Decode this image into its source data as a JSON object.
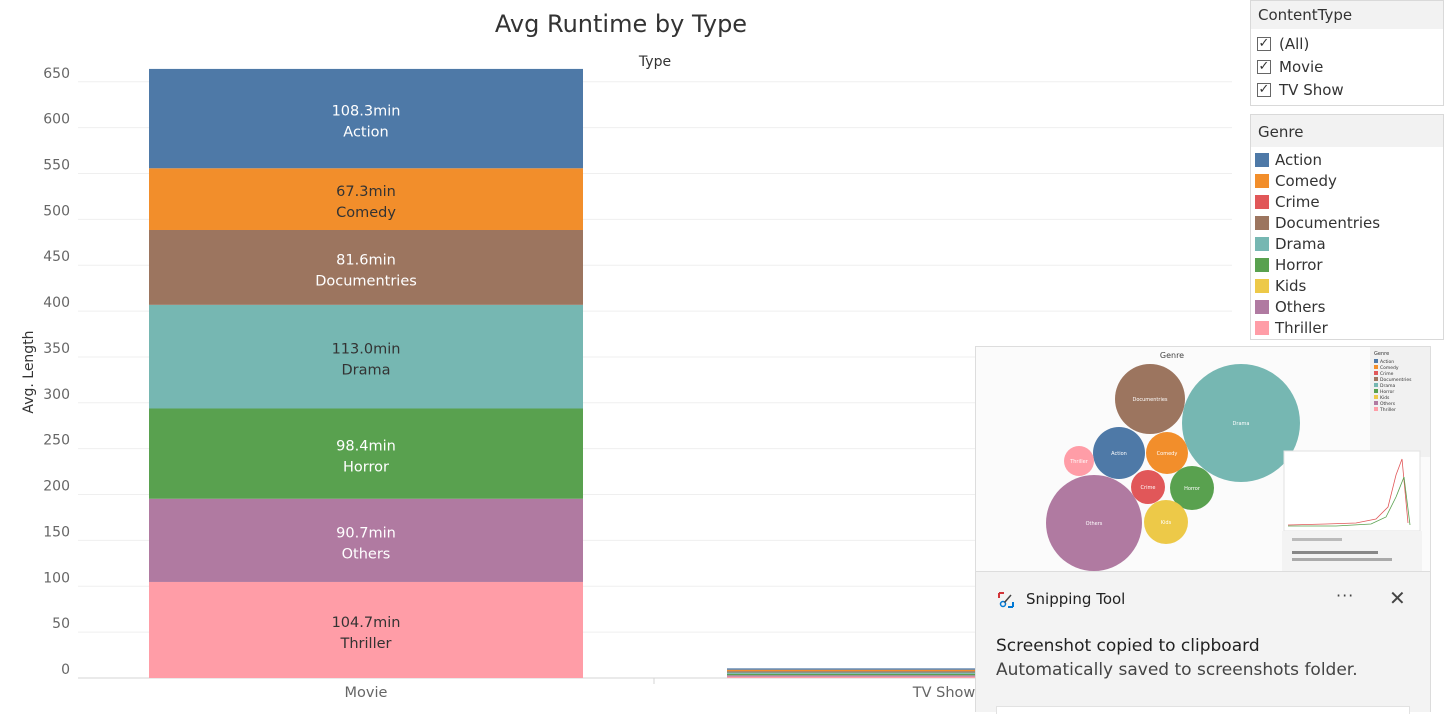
{
  "chart_data": {
    "type": "bar",
    "stacked": true,
    "title": "Avg Runtime by Type",
    "header": "Type",
    "ylabel": "Avg. Length",
    "ylim": [
      0,
      665
    ],
    "yticks": [
      0,
      50,
      100,
      150,
      200,
      250,
      300,
      350,
      400,
      450,
      500,
      550,
      600,
      650
    ],
    "grid": true,
    "categories": [
      "Movie",
      "TV Show"
    ],
    "series": [
      {
        "name": "Thriller",
        "color": "#ff9da7",
        "values": [
          104.7,
          1.5
        ],
        "label": "104.7min",
        "text_color": "#333333"
      },
      {
        "name": "Others",
        "color": "#b07aa1",
        "values": [
          90.7,
          1.5
        ],
        "label": "90.7min",
        "text_color": "#ffffff"
      },
      {
        "name": "Horror",
        "color": "#59a14f",
        "values": [
          98.4,
          1.5
        ],
        "label": "98.4min",
        "text_color": "#ffffff"
      },
      {
        "name": "Drama",
        "color": "#76b7b2",
        "values": [
          113.0,
          1.5
        ],
        "label": "113.0min",
        "text_color": "#333333"
      },
      {
        "name": "Documentries",
        "color": "#9c755f",
        "values": [
          81.6,
          1.5
        ],
        "label": "81.6min",
        "text_color": "#ffffff"
      },
      {
        "name": "Comedy",
        "color": "#f28e2b",
        "values": [
          67.3,
          1.5
        ],
        "label": "67.3min",
        "text_color": "#333333"
      },
      {
        "name": "Action",
        "color": "#4e79a7",
        "values": [
          108.3,
          1.5
        ],
        "label": "108.3min",
        "text_color": "#ffffff"
      }
    ]
  },
  "content_filter": {
    "title": "ContentType",
    "options": [
      {
        "label": "(All)",
        "checked": true
      },
      {
        "label": "Movie",
        "checked": true
      },
      {
        "label": "TV Show",
        "checked": true
      }
    ]
  },
  "genre_legend": {
    "title": "Genre",
    "items": [
      {
        "label": "Action",
        "color": "#4e79a7"
      },
      {
        "label": "Comedy",
        "color": "#f28e2b"
      },
      {
        "label": "Crime",
        "color": "#e15759"
      },
      {
        "label": "Documentries",
        "color": "#9c755f"
      },
      {
        "label": "Drama",
        "color": "#76b7b2"
      },
      {
        "label": "Horror",
        "color": "#59a14f"
      },
      {
        "label": "Kids",
        "color": "#edc948"
      },
      {
        "label": "Others",
        "color": "#b07aa1"
      },
      {
        "label": "Thriller",
        "color": "#ff9da7"
      }
    ]
  },
  "preview": {
    "header": "Genre",
    "bubbles": [
      {
        "label": "Drama",
        "color": "#76b7b2"
      },
      {
        "label": "Documentries",
        "color": "#9c755f"
      },
      {
        "label": "Others",
        "color": "#b07aa1"
      },
      {
        "label": "Action",
        "color": "#4e79a7"
      },
      {
        "label": "Comedy",
        "color": "#f28e2b"
      },
      {
        "label": "Horror",
        "color": "#59a14f"
      },
      {
        "label": "Crime",
        "color": "#e15759"
      },
      {
        "label": "Kids",
        "color": "#edc948"
      },
      {
        "label": "Thriller",
        "color": "#ff9da7"
      }
    ]
  },
  "toast": {
    "app_name": "Snipping Tool",
    "more_label": "···",
    "close_label": "✕",
    "title": "Screenshot copied to clipboard",
    "body": "Automatically saved to screenshots folder."
  }
}
